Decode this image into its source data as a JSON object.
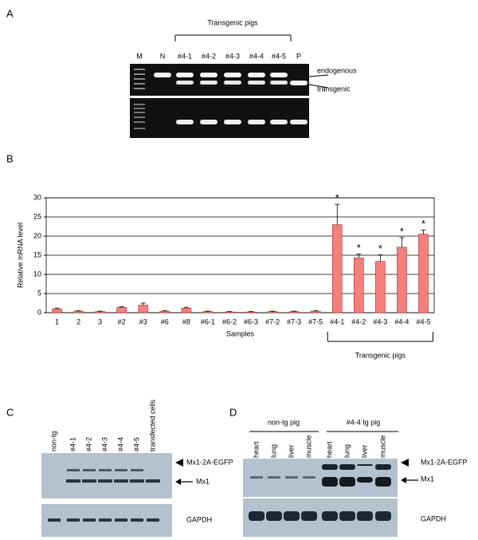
{
  "panel_a": {
    "label": "A",
    "group_label": "Transgenic pigs",
    "lanes": [
      "M",
      "N",
      "#4-1",
      "#4-2",
      "#4-3",
      "#4-4",
      "#4-5",
      "P"
    ],
    "band_labels": [
      "endogenous",
      "transgenic"
    ]
  },
  "panel_b": {
    "label": "B"
  },
  "chart_data": {
    "type": "bar",
    "ylabel": "Relative mRNA level",
    "xlabel": "Samples",
    "categories": [
      "1",
      "2",
      "3",
      "#2",
      "#3",
      "#6",
      "#8",
      "#6-1",
      "#6-2",
      "#6-3",
      "#7-2",
      "#7-3",
      "#7-5",
      "#4-1",
      "#4-2",
      "#4-3",
      "#4-4",
      "#4-5"
    ],
    "values": [
      1.0,
      0.4,
      0.3,
      1.4,
      2.0,
      0.4,
      1.2,
      0.3,
      0.2,
      0.2,
      0.3,
      0.3,
      0.4,
      23,
      14.3,
      13.4,
      17.1,
      20.5
    ],
    "errors": [
      0.2,
      0.1,
      0.1,
      0.2,
      0.5,
      0.1,
      0.2,
      0.1,
      0.1,
      0.1,
      0.1,
      0.1,
      0.1,
      5.3,
      1.0,
      1.7,
      2.5,
      1.1
    ],
    "color": "#f4807c",
    "ylim": [
      0,
      30
    ],
    "yticks": [
      0,
      5,
      10,
      15,
      20,
      25,
      30
    ],
    "grid": true,
    "annotations": [
      {
        "text": "*",
        "category": "#4-1"
      },
      {
        "text": "*",
        "category": "#4-2"
      },
      {
        "text": "*",
        "category": "#4-3"
      },
      {
        "text": "*",
        "category": "#4-4"
      },
      {
        "text": "*",
        "category": "#4-5"
      }
    ],
    "group": {
      "label": "Transgenic pigs",
      "from": "#4-1",
      "to": "#4-5"
    }
  },
  "panel_c": {
    "label": "C",
    "lanes": [
      "non-tg",
      "#4-1",
      "#4-2",
      "#4-3",
      "#4-4",
      "#4-5",
      "transfected cells"
    ],
    "band_labels": [
      "Mx1-2A-EGFP",
      "Mx1",
      "GAPDH"
    ]
  },
  "panel_d": {
    "label": "D",
    "groups": [
      "non-tg pig",
      "#4-4 tg pig"
    ],
    "lanes": [
      "heart",
      "lung",
      "liver",
      "muscle",
      "heart",
      "lung",
      "liver",
      "muscle"
    ],
    "band_labels": [
      "Mx1-2A-EGFP",
      "Mx1",
      "GAPDH"
    ]
  }
}
